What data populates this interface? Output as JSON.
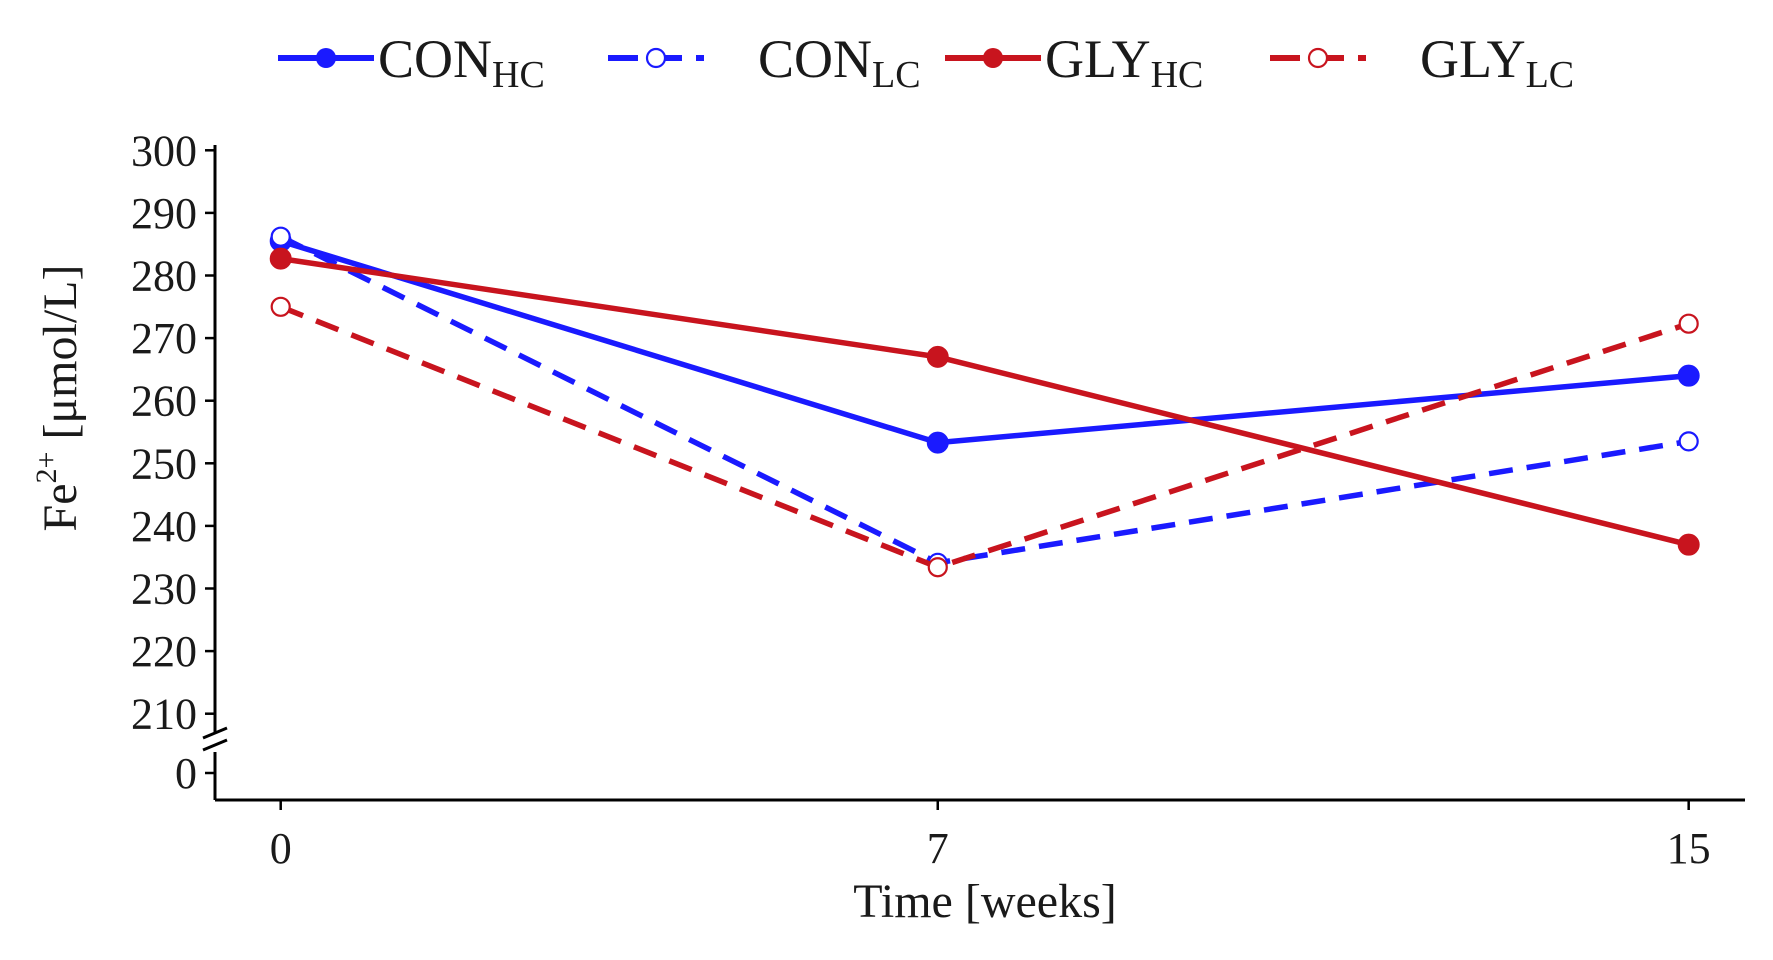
{
  "chart_data": {
    "type": "line",
    "xlabel": "Time [weeks]",
    "ylabel": {
      "main": "Fe",
      "sup": "2+",
      "rest": " [μmol/L]"
    },
    "x": [
      0,
      7,
      15
    ],
    "x_ticks": [
      "0",
      "7",
      "15"
    ],
    "xlim": [
      -0.7,
      15.6
    ],
    "ylim": [
      205,
      305
    ],
    "y_ticks": [
      "300",
      "290",
      "280",
      "270",
      "260",
      "250",
      "240",
      "230",
      "220",
      "210"
    ],
    "y_tick_values": [
      300,
      290,
      280,
      270,
      260,
      250,
      240,
      230,
      220,
      210
    ],
    "axis_break": true,
    "zero_label": "0",
    "grid": false,
    "legend_position": "top",
    "series": [
      {
        "name": "CON",
        "sub": "HC",
        "values": [
          285.5,
          253.3,
          264.0
        ],
        "color": "#1a1aff",
        "dashed": false,
        "marker": "filled-circle"
      },
      {
        "name": "CON",
        "sub": "LC",
        "values": [
          286.2,
          234.1,
          253.5
        ],
        "color": "#1a1aff",
        "dashed": true,
        "marker": "open-circle"
      },
      {
        "name": "GLY",
        "sub": "HC",
        "values": [
          282.7,
          267.0,
          237.0
        ],
        "color": "#c8141e",
        "dashed": false,
        "marker": "filled-circle"
      },
      {
        "name": "GLY",
        "sub": "LC",
        "values": [
          275.0,
          233.4,
          272.3
        ],
        "color": "#c8141e",
        "dashed": true,
        "marker": "open-circle"
      }
    ]
  }
}
